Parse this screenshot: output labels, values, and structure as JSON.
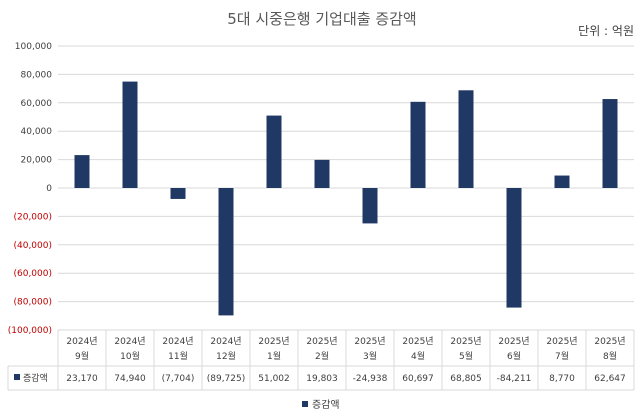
{
  "chart_data": {
    "type": "bar",
    "title": "5대 시중은행 기업대출 증감액",
    "unit_label": "단위 : 억원",
    "series": [
      {
        "name": "증감액",
        "color": "#203864",
        "values": [
          23170,
          74940,
          -7704,
          -89725,
          51002,
          19803,
          -24938,
          60697,
          68805,
          -84211,
          8770,
          62647
        ],
        "value_labels": [
          "23,170",
          "74,940",
          "(7,704)",
          "(89,725)",
          "51,002",
          "19,803",
          "-24,938",
          "60,697",
          "68,805",
          "-84,211",
          "8,770",
          "62,647"
        ]
      }
    ],
    "categories": [
      [
        "2024년",
        "9월"
      ],
      [
        "2024년",
        "10월"
      ],
      [
        "2024년",
        "11월"
      ],
      [
        "2024년",
        "12월"
      ],
      [
        "2025년",
        "1월"
      ],
      [
        "2025년",
        "2월"
      ],
      [
        "2025년",
        "3월"
      ],
      [
        "2025년",
        "4월"
      ],
      [
        "2025년",
        "5월"
      ],
      [
        "2025년",
        "6월"
      ],
      [
        "2025년",
        "7월"
      ],
      [
        "2025년",
        "8월"
      ]
    ],
    "y_ticks": [
      {
        "value": 100000,
        "label": "100,000"
      },
      {
        "value": 80000,
        "label": "80,000"
      },
      {
        "value": 60000,
        "label": "60,000"
      },
      {
        "value": 40000,
        "label": "40,000"
      },
      {
        "value": 20000,
        "label": "20,000"
      },
      {
        "value": 0,
        "label": "0"
      },
      {
        "value": -20000,
        "label": "(20,000)"
      },
      {
        "value": -40000,
        "label": "(40,000)"
      },
      {
        "value": -60000,
        "label": "(60,000)"
      },
      {
        "value": -80000,
        "label": "(80,000)"
      },
      {
        "value": -100000,
        "label": "(100,000)"
      }
    ],
    "ylim": [
      -100000,
      100000
    ],
    "negative_tick_color": "#c00000",
    "grid": true,
    "data_table": true,
    "legend_position": "bottom"
  }
}
